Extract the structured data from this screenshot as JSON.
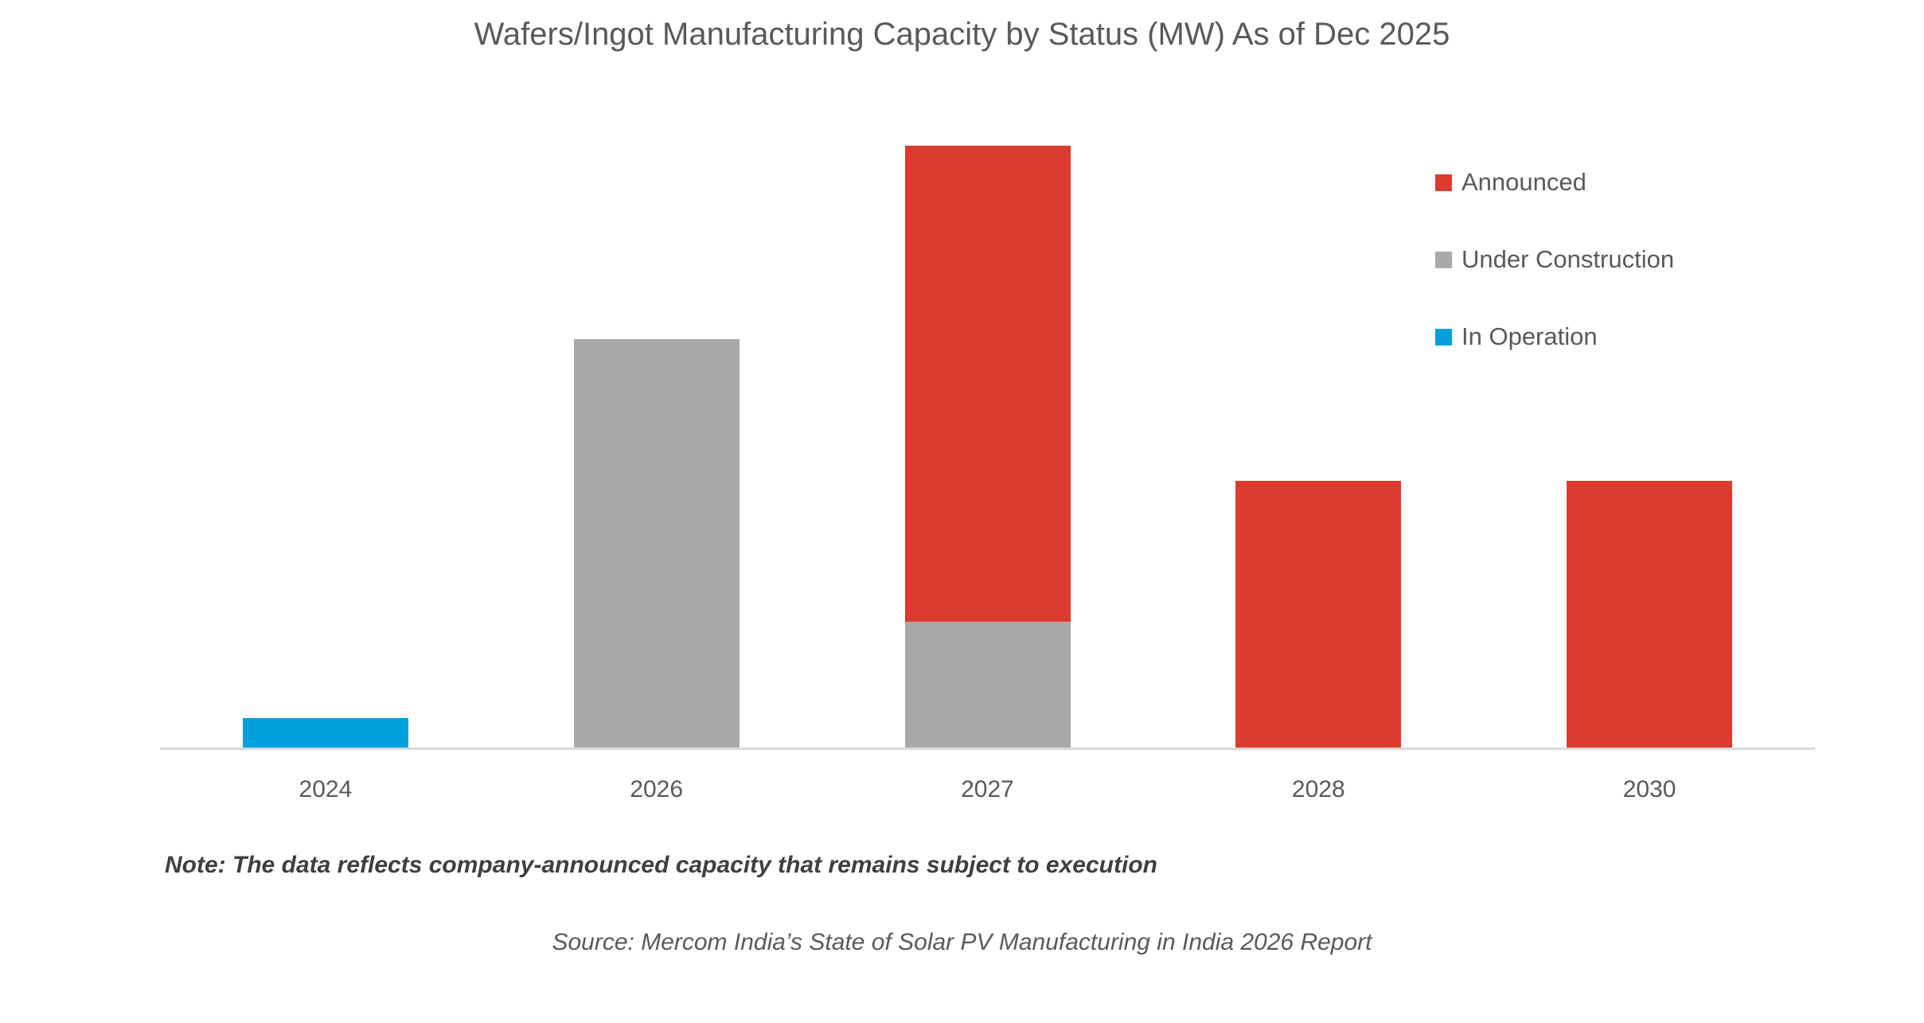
{
  "chart_data": {
    "type": "bar",
    "stacked": true,
    "title": "Wafers/Ingot Manufacturing Capacity by Status (MW) As of Dec 2025",
    "categories": [
      "2024",
      "2026",
      "2027",
      "2028",
      "2030"
    ],
    "series": [
      {
        "name": "In Operation",
        "color": "#00A0DC",
        "values": [
          2000,
          0,
          0,
          0,
          0
        ]
      },
      {
        "name": "Under Construction",
        "color": "#A9A9A9",
        "values": [
          0,
          26400,
          8200,
          0,
          0
        ]
      },
      {
        "name": "Announced",
        "color": "#DC3C2D",
        "values": [
          0,
          0,
          30700,
          17300,
          17300
        ]
      }
    ],
    "xlabel": "",
    "ylabel": "",
    "ylim": [
      0,
      40000
    ],
    "values_estimated_from_bar_heights": true,
    "y_axis_shown": false,
    "gridlines": false,
    "legend_position": "right-top"
  },
  "note": "Note: The data reflects company-announced capacity that remains subject to execution",
  "source": "Source: Mercom India’s State of Solar PV Manufacturing in India 2026 Report",
  "colors": {
    "background": "#FFFFFF",
    "axis_line": "#D9D9D9",
    "title_text": "#595959",
    "axis_label_text": "#595959",
    "note_text": "#3F3F3F",
    "source_text": "#595959"
  }
}
